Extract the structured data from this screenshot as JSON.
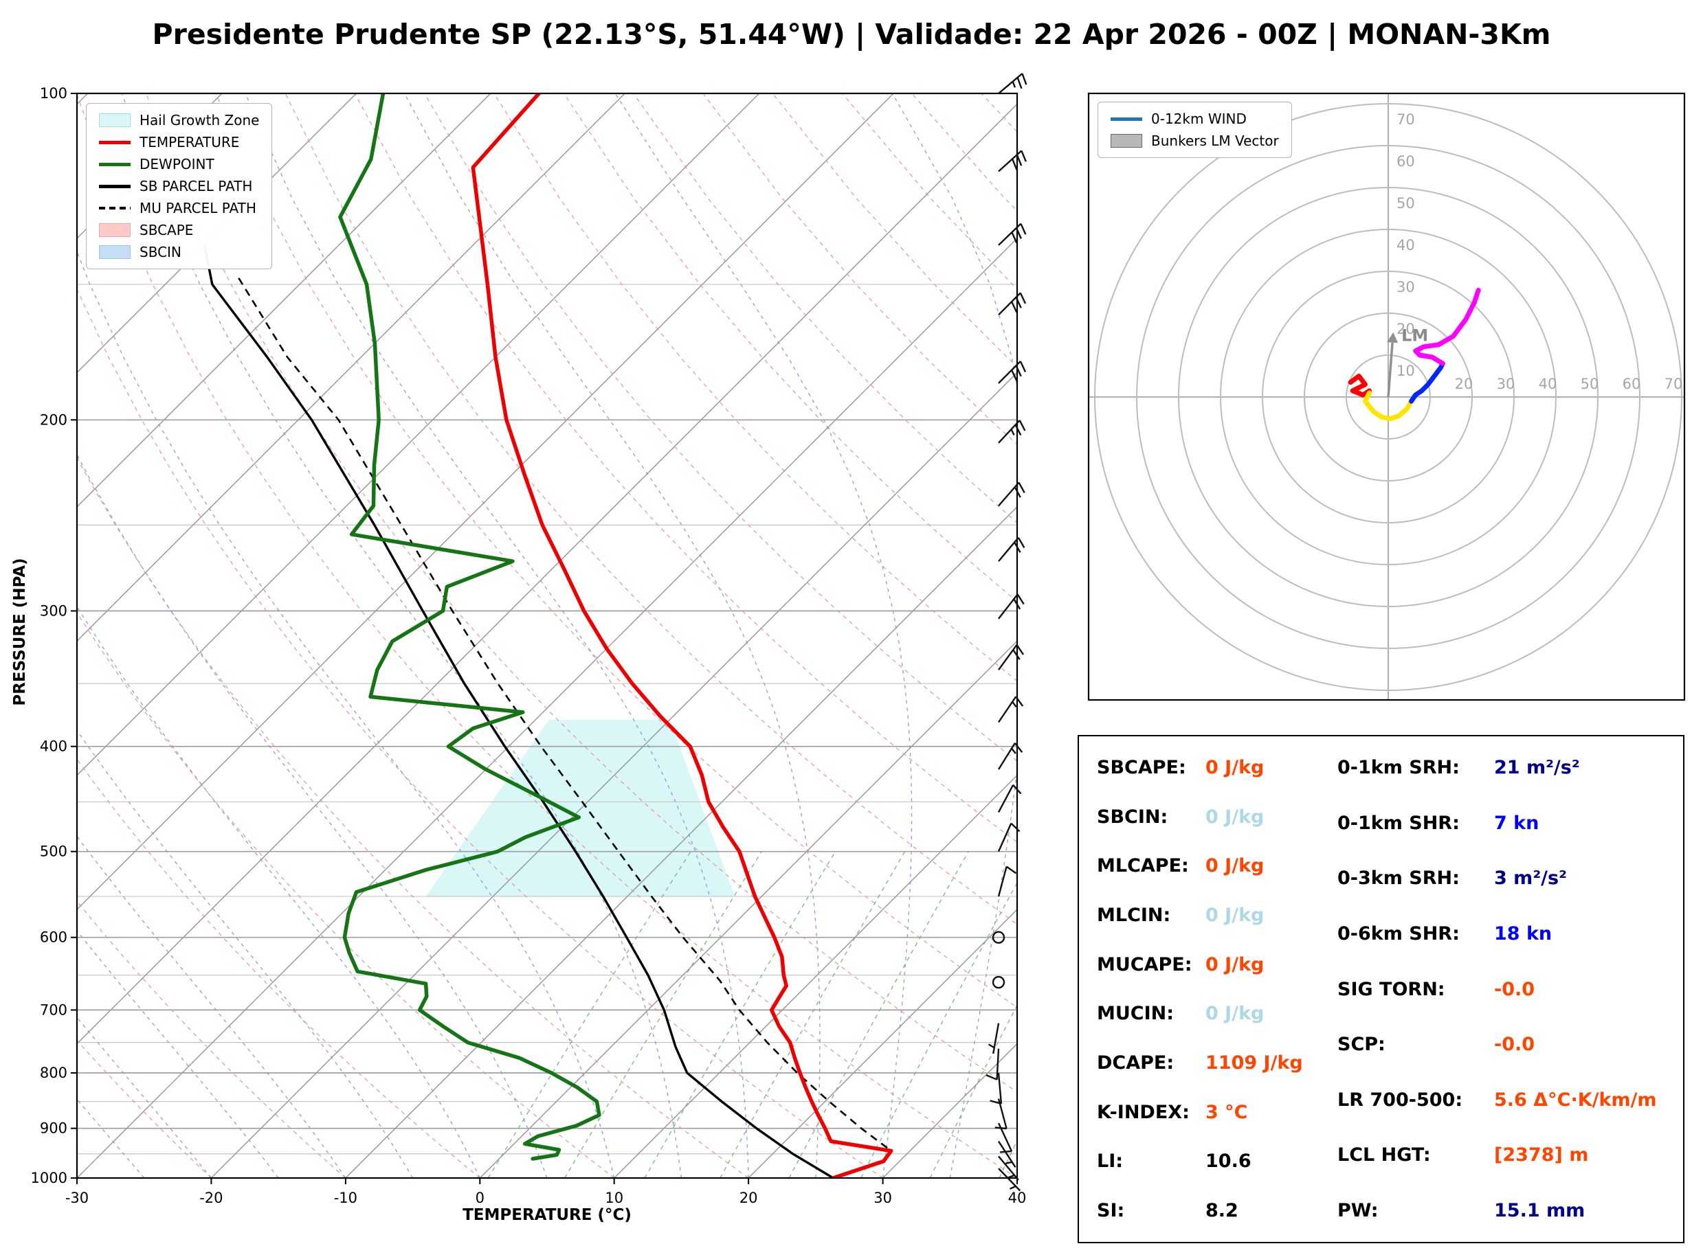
{
  "title": "Presidente Prudente SP (22.13°S, 51.44°W) | Validade: 22 Apr 2026 - 00Z | MONAN-3Km",
  "skewt": {
    "xlabel": "TEMPERATURE (°C)",
    "ylabel": "PRESSURE (HPA)",
    "x_ticks": [
      -30,
      -20,
      -10,
      0,
      10,
      20,
      30,
      40
    ],
    "p_major": [
      100,
      200,
      300,
      400,
      500,
      600,
      700,
      800,
      900,
      1000
    ],
    "p_minor": [
      150,
      250,
      350,
      450,
      550,
      650,
      750,
      850,
      950
    ],
    "legend": [
      {
        "label": "Hail Growth Zone",
        "swatch": "patch",
        "color": "#d9f7f7",
        "border": "#a5dede"
      },
      {
        "label": "TEMPERATURE",
        "swatch": "line",
        "color": "#ee0000"
      },
      {
        "label": "DEWPOINT",
        "swatch": "line",
        "color": "#157515"
      },
      {
        "label": "SB PARCEL PATH",
        "swatch": "line",
        "color": "#000000"
      },
      {
        "label": "MU PARCEL PATH",
        "swatch": "dashed",
        "color": "#000000"
      },
      {
        "label": "SBCAPE",
        "swatch": "patch",
        "color": "rgba(255,120,120,0.40)",
        "border": "#e8a8a8"
      },
      {
        "label": "SBCIN",
        "swatch": "patch",
        "color": "rgba(150,195,235,0.55)",
        "border": "#9ec4e8"
      }
    ]
  },
  "hodograph_legend": [
    {
      "label": "0-12km WIND",
      "swatch": "line",
      "color": "#1f77b4"
    },
    {
      "label": "Bunkers LM Vector",
      "swatch": "patch",
      "color": "#b8b8b8",
      "border": "#666666"
    }
  ],
  "chart_data": {
    "skewt": {
      "type": "line",
      "x_range_c": [
        -30,
        40
      ],
      "pressure_range_hpa": [
        100,
        1000
      ],
      "temperature_c": {
        "pressure": [
          100,
          117,
          150,
          175,
          200,
          225,
          250,
          275,
          300,
          325,
          350,
          375,
          400,
          425,
          450,
          475,
          500,
          525,
          550,
          575,
          600,
          625,
          650,
          665,
          680,
          700,
          725,
          750,
          775,
          800,
          825,
          850,
          875,
          900,
          925,
          944,
          965,
          1000
        ],
        "values": [
          -76.4,
          -75.8,
          -66,
          -60,
          -54.5,
          -49,
          -44,
          -39,
          -34.5,
          -30,
          -25.5,
          -21,
          -16.5,
          -13.5,
          -11,
          -8,
          -5,
          -2.7,
          -0.5,
          1.8,
          4,
          6,
          7.5,
          8.5,
          8.8,
          9.2,
          11,
          13,
          14.5,
          16,
          17.5,
          19,
          20.5,
          22,
          23.4,
          28.6,
          28.8,
          26.3
        ]
      },
      "dewpoint_c": {
        "pressure": [
          100,
          115,
          130,
          150,
          170,
          200,
          220,
          240,
          255,
          270,
          285,
          300,
          320,
          340,
          360,
          372,
          385,
          400,
          420,
          445,
          465,
          485,
          500,
          520,
          545,
          570,
          600,
          620,
          645,
          662,
          680,
          700,
          725,
          750,
          775,
          800,
          825,
          850,
          875,
          895,
          915,
          930,
          942,
          952,
          960
        ],
        "values": [
          -88,
          -84,
          -82,
          -75,
          -70,
          -64,
          -61,
          -58,
          -57.5,
          -43.5,
          -46.5,
          -45,
          -46.5,
          -45.5,
          -44,
          -31.5,
          -34,
          -34.5,
          -30,
          -24,
          -19.5,
          -22,
          -23,
          -27,
          -30.5,
          -29.5,
          -28,
          -26.5,
          -24.5,
          -18.5,
          -17.5,
          -17,
          -14,
          -11,
          -6,
          -2.5,
          0.5,
          3,
          4.2,
          3.3,
          1.2,
          0.8,
          3.8,
          4,
          2.5
        ]
      },
      "sb_parcel_c": {
        "pressure": [
          138,
          150,
          175,
          200,
          250,
          300,
          350,
          400,
          450,
          500,
          550,
          600,
          650,
          700,
          757,
          800,
          850,
          900,
          950,
          1000
        ],
        "values": [
          -90,
          -86.5,
          -77,
          -69,
          -56.5,
          -46.5,
          -38,
          -30.3,
          -23.3,
          -17.2,
          -11.8,
          -7,
          -2.6,
          1.2,
          4.8,
          7.6,
          12.3,
          16.9,
          21.5,
          26.3
        ]
      },
      "mu_parcel_c": {
        "pressure": [
          148,
          175,
          200,
          250,
          300,
          350,
          400,
          450,
          500,
          550,
          600,
          658,
          700,
          750,
          800,
          850,
          900,
          944
        ],
        "values": [
          -85,
          -75.5,
          -67,
          -54.5,
          -44.3,
          -35.5,
          -27.6,
          -20.4,
          -14,
          -8.2,
          -2.8,
          3.2,
          6.8,
          11.3,
          15.8,
          20.3,
          24.7,
          28.6
        ]
      },
      "hail_growth_zone_p_t": [
        [
          550,
          -25
        ],
        [
          550,
          -2
        ],
        [
          378,
          -20
        ],
        [
          378,
          -29
        ]
      ],
      "wind_barbs": [
        {
          "p": 100,
          "dir": 50,
          "spd": 25
        },
        {
          "p": 118,
          "dir": 48,
          "spd": 28
        },
        {
          "p": 138,
          "dir": 46,
          "spd": 30
        },
        {
          "p": 160,
          "dir": 45,
          "spd": 30
        },
        {
          "p": 185,
          "dir": 45,
          "spd": 28
        },
        {
          "p": 210,
          "dir": 43,
          "spd": 25
        },
        {
          "p": 240,
          "dir": 41,
          "spd": 22
        },
        {
          "p": 270,
          "dir": 40,
          "spd": 20
        },
        {
          "p": 305,
          "dir": 38,
          "spd": 20
        },
        {
          "p": 340,
          "dir": 36,
          "spd": 18
        },
        {
          "p": 380,
          "dir": 34,
          "spd": 15
        },
        {
          "p": 420,
          "dir": 32,
          "spd": 15
        },
        {
          "p": 460,
          "dir": 28,
          "spd": 12
        },
        {
          "p": 500,
          "dir": 24,
          "spd": 12
        },
        {
          "p": 550,
          "dir": 15,
          "spd": 10
        },
        {
          "p": 600,
          "dir": 0,
          "spd": 0
        },
        {
          "p": 660,
          "dir": 0,
          "spd": 0
        },
        {
          "p": 720,
          "dir": 190,
          "spd": 7
        },
        {
          "p": 760,
          "dir": 183,
          "spd": 8
        },
        {
          "p": 800,
          "dir": 175,
          "spd": 8
        },
        {
          "p": 845,
          "dir": 165,
          "spd": 8
        },
        {
          "p": 890,
          "dir": 155,
          "spd": 8
        },
        {
          "p": 925,
          "dir": 147,
          "spd": 7
        },
        {
          "p": 955,
          "dir": 140,
          "spd": 5
        },
        {
          "p": 980,
          "dir": 136,
          "spd": 5
        }
      ]
    },
    "hodograph": {
      "type": "line",
      "rings_kt": [
        10,
        20,
        30,
        40,
        50,
        60,
        70
      ],
      "segments": [
        {
          "color": "#ff0000",
          "points": [
            [
              -9,
              3.5
            ],
            [
              -7,
              5
            ],
            [
              -5.5,
              3
            ],
            [
              -8.5,
              1.5
            ],
            [
              -6,
              0.5
            ],
            [
              -4.5,
              1.5
            ]
          ]
        },
        {
          "color": "#ffe400",
          "points": [
            [
              -4.5,
              1
            ],
            [
              -5.5,
              -1
            ],
            [
              -3.5,
              -3.5
            ],
            [
              -1.5,
              -4.8
            ],
            [
              0.5,
              -5.2
            ],
            [
              2.5,
              -4.5
            ],
            [
              4.5,
              -2.8
            ],
            [
              5.5,
              -1
            ]
          ]
        },
        {
          "color": "#0026ff",
          "points": [
            [
              5.5,
              -1
            ],
            [
              6.5,
              0.5
            ],
            [
              8,
              1.5
            ],
            [
              9.5,
              3
            ],
            [
              11,
              5
            ],
            [
              12.5,
              7
            ],
            [
              13,
              8
            ]
          ]
        },
        {
          "color": "#ff00ff",
          "points": [
            [
              13,
              8
            ],
            [
              10.5,
              9.5
            ],
            [
              7.5,
              10
            ],
            [
              6.5,
              11
            ],
            [
              8.5,
              12
            ],
            [
              12,
              12.5
            ],
            [
              15.5,
              14.5
            ],
            [
              18.5,
              18.5
            ],
            [
              20.5,
              22.5
            ],
            [
              21.5,
              25.5
            ]
          ]
        }
      ],
      "lm_vector": {
        "u": 1,
        "v": 13,
        "label": "LM"
      }
    }
  },
  "stats": {
    "left": [
      {
        "label": "SBCAPE:",
        "value": "0 J/kg",
        "color": "#ff4500"
      },
      {
        "label": "SBCIN:",
        "value": "0 J/kg",
        "color": "#add8e6"
      },
      {
        "label": "MLCAPE:",
        "value": "0 J/kg",
        "color": "#ff4500"
      },
      {
        "label": "MLCIN:",
        "value": "0 J/kg",
        "color": "#add8e6"
      },
      {
        "label": "MUCAPE:",
        "value": "0 J/kg",
        "color": "#ff4500"
      },
      {
        "label": "MUCIN:",
        "value": "0 J/kg",
        "color": "#add8e6"
      },
      {
        "label": "DCAPE:",
        "value": "1109 J/kg",
        "color": "#ff4500"
      },
      {
        "label": "K-INDEX:",
        "value": "3 °C",
        "color": "#ff4500"
      },
      {
        "label": "LI:",
        "value": "10.6",
        "color": "#000000"
      },
      {
        "label": "SI:",
        "value": "8.2",
        "color": "#000000"
      }
    ],
    "right": [
      {
        "label": "0-1km SRH:",
        "value": "21 m²/s²",
        "color": "#00008b"
      },
      {
        "label": "0-1km SHR:",
        "value": "7 kn",
        "color": "#0000ff"
      },
      {
        "label": "0-3km SRH:",
        "value": "3 m²/s²",
        "color": "#00008b"
      },
      {
        "label": "0-6km SHR:",
        "value": "18 kn",
        "color": "#0000ff"
      },
      {
        "label": "SIG TORN:",
        "value": "-0.0",
        "color": "#ff4500"
      },
      {
        "label": "SCP:",
        "value": "-0.0",
        "color": "#ff4500"
      },
      {
        "label": "LR 700-500:",
        "value": "5.6 Δ°C·K/km/m",
        "color": "#ff4500"
      },
      {
        "label": "LCL HGT:",
        "value": "[2378] m",
        "color": "#ff4500"
      },
      {
        "label": "PW:",
        "value": "15.1 mm",
        "color": "#00008b"
      }
    ]
  }
}
